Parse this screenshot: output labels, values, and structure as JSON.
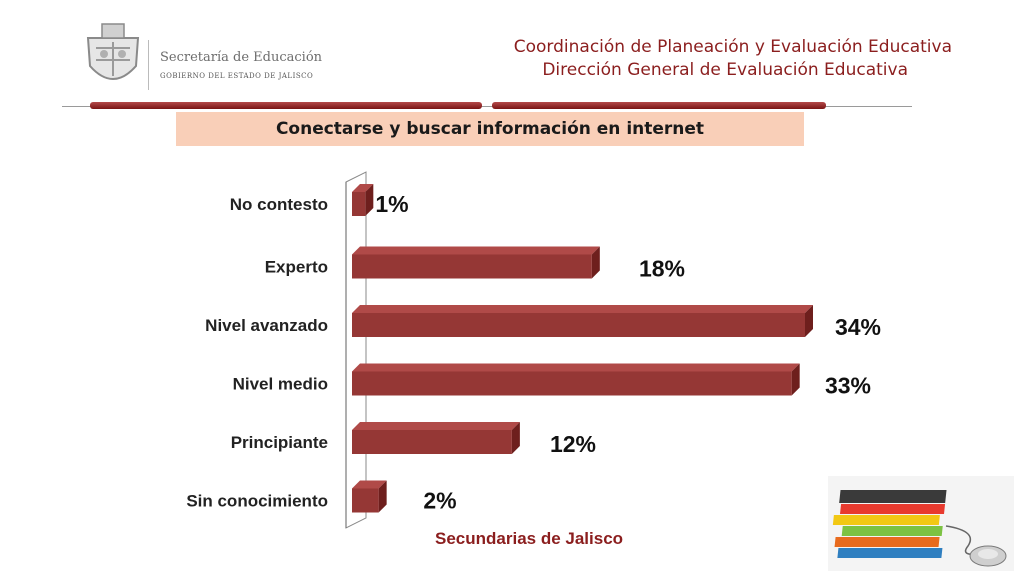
{
  "header": {
    "logo_line1": "Secretaría de Educación",
    "logo_line2": "GOBIERNO DEL ESTADO DE JALISCO",
    "title_line1": "Coordinación de Planeación y Evaluación Educativa",
    "title_line2": "Dirección General de Evaluación Educativa"
  },
  "chart_data": {
    "type": "bar",
    "orientation": "horizontal",
    "title": "Conectarse y buscar información en internet",
    "categories": [
      "No contesto",
      "Experto",
      "Nivel avanzado",
      "Nivel medio",
      "Principiante",
      "Sin conocimiento"
    ],
    "values": [
      1,
      18,
      34,
      33,
      12,
      2
    ],
    "value_labels": [
      "1%",
      "18%",
      "34%",
      "33%",
      "12%",
      "2%"
    ],
    "unit": "%",
    "xlim": [
      0,
      34
    ],
    "bar_color": "#953735",
    "grid": false,
    "legend": "none"
  },
  "footer": {
    "label": "Secundarias de Jalisco"
  },
  "colors": {
    "accent": "#8b1e1e",
    "title_band": "#f9cfb8"
  }
}
